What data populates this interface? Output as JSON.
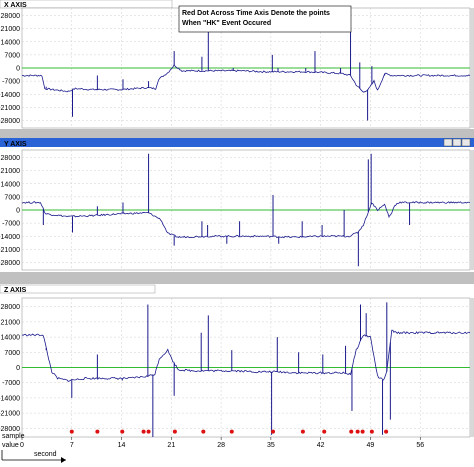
{
  "colors": {
    "signal": "#1a1a8c",
    "zero_line": "#33bb33",
    "grid": "#cfcfcf",
    "event_marker": "#dd1111",
    "titlebar_active": "#2a63d6",
    "titlebar_inactive": "#ffffff",
    "window_frame": "#c0c0c0",
    "scrollbar": "#d8d8d8"
  },
  "note": {
    "line1": "Red Dot Across Time Axis Denote the points",
    "line2": "When \"HK\" Event Occured"
  },
  "axis_labels": {
    "sample": "sample",
    "value": "value",
    "second": "second"
  },
  "chart_data": [
    {
      "type": "line",
      "title": "X AXIS",
      "xlim": [
        0,
        63
      ],
      "ylim": [
        -32000,
        32000
      ],
      "yticks": [
        "28000",
        "21000",
        "14000",
        "7000",
        "0",
        "-7000",
        "-14000",
        "-21000",
        "-28000"
      ],
      "grid": true,
      "zero_line": 0,
      "series": [
        {
          "segments": [
            [
              0,
              -4000
            ],
            [
              2.8,
              -4000
            ],
            [
              3.2,
              -11000
            ],
            [
              6.5,
              -12500
            ],
            [
              7.5,
              -11000
            ],
            [
              10,
              -11500
            ],
            [
              14,
              -11500
            ],
            [
              17.5,
              -10500
            ],
            [
              18.8,
              -11000
            ],
            [
              19.2,
              -6000
            ],
            [
              20.5,
              -2500
            ],
            [
              21.4,
              1500
            ],
            [
              22.5,
              -1500
            ],
            [
              25,
              -1500
            ],
            [
              28,
              -1500
            ],
            [
              31,
              -1500
            ],
            [
              34,
              -2000
            ],
            [
              37,
              -2000
            ],
            [
              40,
              -2000
            ],
            [
              43,
              -2500
            ],
            [
              45,
              -3000
            ],
            [
              46.2,
              -4000
            ],
            [
              47,
              -9000
            ],
            [
              48,
              -13000
            ],
            [
              48.8,
              -11000
            ],
            [
              49.5,
              -7000
            ],
            [
              50,
              -12000
            ],
            [
              51,
              -3000
            ],
            [
              52,
              -4000
            ],
            [
              55,
              -4000
            ],
            [
              63,
              -4000
            ]
          ]
        }
      ],
      "spikes": [
        {
          "x": 3.4,
          "y": -10000
        },
        {
          "x": 7.1,
          "y": -26000
        },
        {
          "x": 10.6,
          "y": -4000
        },
        {
          "x": 14.2,
          "y": -6000
        },
        {
          "x": 17.8,
          "y": -7000
        },
        {
          "x": 21.4,
          "y": 9000
        },
        {
          "x": 25.3,
          "y": 6000
        },
        {
          "x": 26.2,
          "y": 31000
        },
        {
          "x": 29.7,
          "y": 0
        },
        {
          "x": 35.2,
          "y": 7000
        },
        {
          "x": 36.0,
          "y": 0
        },
        {
          "x": 39.9,
          "y": 0
        },
        {
          "x": 41.2,
          "y": 9000
        },
        {
          "x": 44.8,
          "y": 0
        },
        {
          "x": 46.2,
          "y": 22000
        },
        {
          "x": 47.5,
          "y": 3000
        },
        {
          "x": 48.6,
          "y": -28000
        },
        {
          "x": 49.2,
          "y": 1000
        },
        {
          "x": 51.0,
          "y": -4000
        }
      ]
    },
    {
      "type": "line",
      "title": "Y AXIS",
      "xlim": [
        0,
        63
      ],
      "ylim": [
        -32000,
        32000
      ],
      "yticks": [
        "28000",
        "21000",
        "14000",
        "7000",
        "0",
        "-7000",
        "-14000",
        "-21000",
        "-28000"
      ],
      "grid": true,
      "zero_line": 0,
      "series": [
        {
          "segments": [
            [
              0,
              4000
            ],
            [
              2.6,
              4000
            ],
            [
              3.3,
              -2000
            ],
            [
              6.5,
              -3500
            ],
            [
              10,
              -3000
            ],
            [
              14,
              -2000
            ],
            [
              17.8,
              -1500
            ],
            [
              19.5,
              -5000
            ],
            [
              20.5,
              -12500
            ],
            [
              22,
              -14500
            ],
            [
              26,
              -14000
            ],
            [
              30,
              -14000
            ],
            [
              34,
              -14000
            ],
            [
              38,
              -14500
            ],
            [
              42,
              -14000
            ],
            [
              46,
              -14000
            ],
            [
              47.2,
              -12000
            ],
            [
              48,
              -8000
            ],
            [
              48.6,
              -2000
            ],
            [
              49.2,
              4000
            ],
            [
              50,
              0
            ],
            [
              51,
              3000
            ],
            [
              51.6,
              -3500
            ],
            [
              52,
              -1500
            ],
            [
              52.4,
              2500
            ],
            [
              53,
              4000
            ],
            [
              63,
              4000
            ]
          ]
        }
      ],
      "spikes": [
        {
          "x": 3.0,
          "y": -8000
        },
        {
          "x": 7.1,
          "y": -12000
        },
        {
          "x": 10.6,
          "y": 2000
        },
        {
          "x": 14.2,
          "y": 4000
        },
        {
          "x": 17.8,
          "y": 30000
        },
        {
          "x": 21.4,
          "y": -19000
        },
        {
          "x": 25.3,
          "y": -6000
        },
        {
          "x": 26.1,
          "y": -8000
        },
        {
          "x": 28.8,
          "y": -18000
        },
        {
          "x": 30.6,
          "y": -6000
        },
        {
          "x": 35.3,
          "y": 8000
        },
        {
          "x": 36.1,
          "y": -18000
        },
        {
          "x": 39.4,
          "y": -6000
        },
        {
          "x": 42.2,
          "y": -8000
        },
        {
          "x": 45.3,
          "y": 0
        },
        {
          "x": 47.3,
          "y": -30000
        },
        {
          "x": 48.7,
          "y": 27000
        },
        {
          "x": 49.1,
          "y": 30000
        },
        {
          "x": 51.6,
          "y": -4000
        },
        {
          "x": 54.5,
          "y": -8000
        }
      ]
    },
    {
      "type": "line",
      "title": "Z AXIS",
      "xlim": [
        0,
        63
      ],
      "ylim": [
        -32000,
        32000
      ],
      "yticks": [
        "28000",
        "21000",
        "14000",
        "7000",
        "0",
        "-7000",
        "-14000",
        "-21000",
        "-28000"
      ],
      "xlabel": "second",
      "xticks": [
        0,
        7,
        14,
        21,
        28,
        35,
        42,
        49,
        56
      ],
      "xtick_labels": [
        "0",
        "7",
        "14",
        "21",
        "28",
        "35",
        "42",
        "49",
        "56"
      ],
      "grid": true,
      "zero_line": 0,
      "series": [
        {
          "segments": [
            [
              0,
              15000
            ],
            [
              3,
              15000
            ],
            [
              3.6,
              6000
            ],
            [
              4.2,
              -2000
            ],
            [
              5,
              -5000
            ],
            [
              6.5,
              -6000
            ],
            [
              9,
              -5000
            ],
            [
              12,
              -5000
            ],
            [
              15,
              -5000
            ],
            [
              17.7,
              -4000
            ],
            [
              18.7,
              -3000
            ],
            [
              19.3,
              4000
            ],
            [
              20.5,
              8000
            ],
            [
              21.2,
              3000
            ],
            [
              22,
              -1000
            ],
            [
              24,
              -1500
            ],
            [
              27,
              -1500
            ],
            [
              30,
              -1500
            ],
            [
              33,
              -2000
            ],
            [
              36,
              -2000
            ],
            [
              39,
              -2500
            ],
            [
              42,
              -2500
            ],
            [
              45,
              -2500
            ],
            [
              46.2,
              -3000
            ],
            [
              47,
              8000
            ],
            [
              48,
              15000
            ],
            [
              49,
              14000
            ],
            [
              49.5,
              5000
            ],
            [
              50,
              -4000
            ],
            [
              50.8,
              -6000
            ],
            [
              51.3,
              -2000
            ],
            [
              52,
              17000
            ],
            [
              52.6,
              16000
            ],
            [
              56,
              16000
            ],
            [
              63,
              16000
            ]
          ]
        }
      ],
      "spikes": [
        {
          "x": 3.4,
          "y": 8000
        },
        {
          "x": 7.0,
          "y": -14000
        },
        {
          "x": 10.6,
          "y": 6000
        },
        {
          "x": 14.1,
          "y": -6000
        },
        {
          "x": 17.7,
          "y": 29000
        },
        {
          "x": 18.4,
          "y": -32000
        },
        {
          "x": 21.4,
          "y": -13000
        },
        {
          "x": 25.2,
          "y": 16000
        },
        {
          "x": 26.2,
          "y": 24000
        },
        {
          "x": 29.5,
          "y": 8000
        },
        {
          "x": 35.1,
          "y": -31000
        },
        {
          "x": 35.9,
          "y": 14000
        },
        {
          "x": 38.9,
          "y": 7000
        },
        {
          "x": 42.3,
          "y": 6000
        },
        {
          "x": 45.5,
          "y": 10000
        },
        {
          "x": 46.4,
          "y": -20000
        },
        {
          "x": 47.6,
          "y": 29000
        },
        {
          "x": 48.4,
          "y": 25000
        },
        {
          "x": 50.7,
          "y": -31000
        },
        {
          "x": 51.3,
          "y": 30000
        },
        {
          "x": 51.8,
          "y": -24000
        }
      ],
      "event_markers_x": [
        7.0,
        10.6,
        14.1,
        17.1,
        17.8,
        21.5,
        25.5,
        29.5,
        35.3,
        39.5,
        42.5,
        46.3,
        47.2,
        47.9,
        49.2,
        51.2
      ]
    }
  ]
}
